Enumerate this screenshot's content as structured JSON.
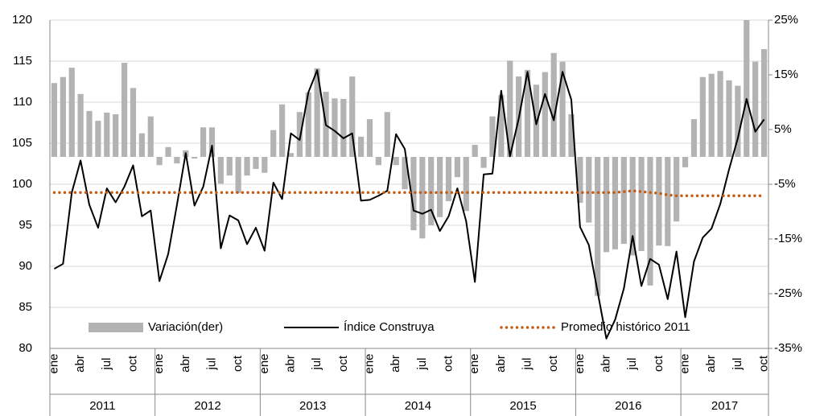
{
  "chart_data": {
    "type": "bar-line",
    "categories": [
      "ene",
      null,
      null,
      "abr",
      null,
      null,
      "jul",
      null,
      null,
      "oct",
      null,
      null,
      "ene",
      null,
      null,
      "abr",
      null,
      null,
      "jul",
      null,
      null,
      "oct",
      null,
      null,
      "ene",
      null,
      null,
      "abr",
      null,
      null,
      "jul",
      null,
      null,
      "oct",
      null,
      null,
      "ene",
      null,
      null,
      "abr",
      null,
      null,
      "jul",
      null,
      null,
      "oct",
      null,
      null,
      "ene",
      null,
      null,
      "abr",
      null,
      null,
      "jul",
      null,
      null,
      "oct",
      null,
      null,
      "ene",
      null,
      null,
      "abr",
      null,
      null,
      "jul",
      null,
      null,
      "oct",
      null,
      null,
      "ene",
      null,
      null,
      "abr",
      null,
      null,
      "jul",
      null,
      null,
      "oct"
    ],
    "years": [
      "2011",
      "2012",
      "2013",
      "2014",
      "2015",
      "2016",
      "2017"
    ],
    "ylim": [
      80,
      120
    ],
    "yticks": [
      80,
      85,
      90,
      95,
      100,
      105,
      110,
      115,
      120
    ],
    "y2lim": [
      -35,
      25
    ],
    "y2ticks": [
      {
        "value": -35,
        "label": "-35%"
      },
      {
        "value": -25,
        "label": "-25%"
      },
      {
        "value": -15,
        "label": "-15%"
      },
      {
        "value": -5,
        "label": "-5%"
      },
      {
        "value": 5,
        "label": "5%"
      },
      {
        "value": 15,
        "label": "15%"
      },
      {
        "value": 25,
        "label": "25%"
      }
    ],
    "grid": true,
    "legend": "bottom",
    "series": [
      {
        "name": "Variación(der)",
        "type": "bar",
        "axis": "y2",
        "color": "#b3b3b3",
        "values": [
          13.5,
          14.6,
          16.3,
          11.5,
          8.4,
          6.6,
          8.1,
          7.8,
          17.2,
          12.6,
          4.3,
          7.4,
          -1.5,
          1.8,
          -1.2,
          1.2,
          -0.3,
          5.4,
          5.4,
          -4.9,
          -3.4,
          -6.6,
          -3.4,
          -2.2,
          -2.9,
          4.9,
          9.6,
          0.7,
          8.2,
          11.8,
          16.2,
          11.9,
          10.7,
          10.6,
          14.7,
          3.7,
          6.9,
          -1.5,
          8.2,
          -1.5,
          -5.9,
          -13.4,
          -14.9,
          -12.5,
          -11,
          -8.1,
          -3.7,
          -9.9,
          2.2,
          -2,
          7.4,
          11.3,
          17.6,
          14.7,
          15.9,
          13.2,
          15.5,
          19,
          17.4,
          7.8,
          -8.4,
          -12,
          -25.4,
          -17.4,
          -16.9,
          -15.9,
          -18,
          -17.2,
          -23.5,
          -16.2,
          -16.3,
          -11.8,
          -1.9,
          6.9,
          14.6,
          15.2,
          15.7,
          14,
          13,
          25,
          17.4,
          19.7
        ]
      },
      {
        "name": "Índice Construya",
        "type": "line",
        "color": "#000000",
        "values": [
          89.7,
          90.3,
          99,
          102.9,
          97.5,
          94.7,
          99.5,
          97.8,
          99.7,
          102.3,
          96.1,
          96.8,
          88.2,
          91.5,
          97.5,
          103.8,
          97.4,
          99.7,
          104.7,
          92.2,
          96.2,
          95.6,
          92.7,
          94.7,
          91.9,
          100.2,
          98.2,
          106.2,
          105.4,
          111.2,
          113.9,
          107.2,
          106.5,
          105.6,
          106.2,
          98,
          98.1,
          98.6,
          99.2,
          106.1,
          104.3,
          96.8,
          96.4,
          96.9,
          94.3,
          96.1,
          99.5,
          95.5,
          88.1,
          101.2,
          101.3,
          111.4,
          103.4,
          108,
          113.7,
          107.3,
          111,
          107.8,
          113.7,
          110.3,
          94.8,
          92.6,
          86.9,
          81.2,
          83.5,
          87.3,
          93.7,
          87.6,
          90.9,
          90.2,
          86,
          91.8,
          83.8,
          90.6,
          93.5,
          94.6,
          97.6,
          101.8,
          105.6,
          110.4,
          106.4,
          107.9
        ]
      },
      {
        "name": "Promedio histórico 2011",
        "type": "line",
        "line_style": "dotted",
        "color": "#c55a11",
        "values": [
          99,
          99,
          99,
          99,
          99,
          99,
          99,
          99,
          99,
          99,
          99,
          99,
          99,
          99,
          99,
          99,
          99,
          99,
          99,
          99,
          99,
          99,
          99,
          99,
          99,
          99,
          99,
          99,
          99,
          99,
          99,
          99,
          99,
          99,
          99,
          99,
          99,
          99,
          99,
          99,
          99,
          99,
          99,
          99,
          99,
          99,
          99,
          99,
          99,
          99,
          99,
          99,
          99,
          99,
          99,
          99,
          99,
          99,
          99,
          99,
          99,
          99,
          99,
          99,
          99,
          99.1,
          99.2,
          99.1,
          99,
          98.9,
          98.7,
          98.6,
          98.6,
          98.6,
          98.6,
          98.6,
          98.6,
          98.6,
          98.6,
          98.6,
          98.6,
          98.6
        ]
      }
    ]
  }
}
